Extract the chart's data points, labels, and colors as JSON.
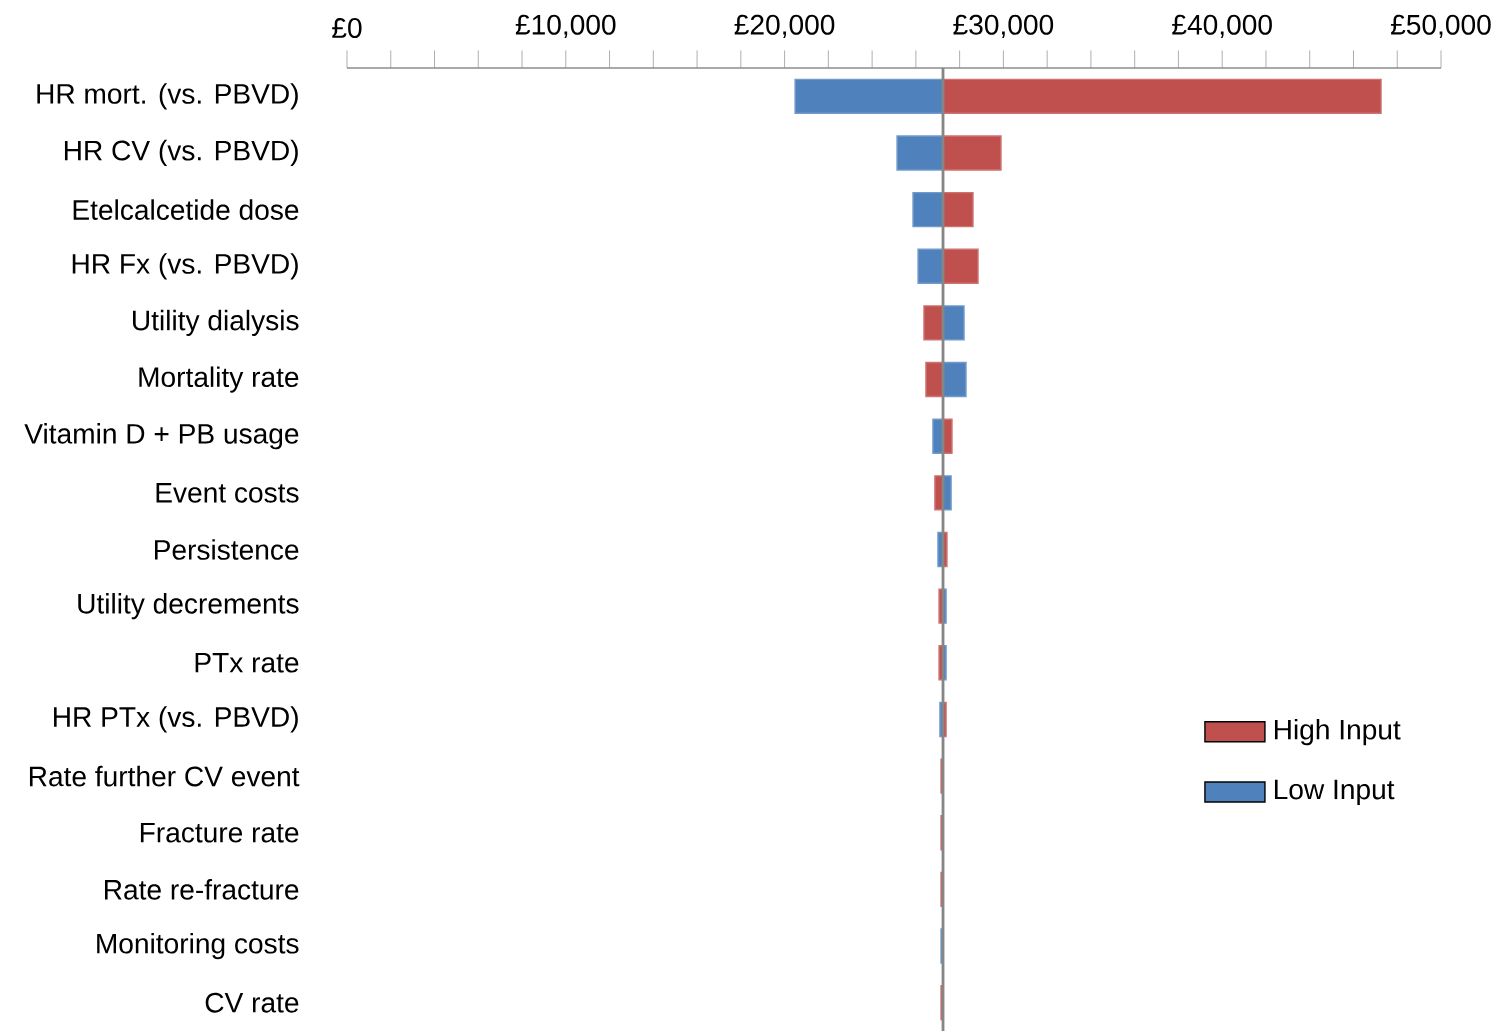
{
  "chart_data": {
    "type": "bar",
    "orientation": "horizontal",
    "categories": [
      "HR mort. (vs. PBVD)",
      "HR CV (vs. PBVD)",
      "Etelcalcetide dose",
      "HR Fx (vs. PBVD)",
      "Utility dialysis",
      "Mortality rate",
      "Vitamin D + PB usage",
      "Event costs",
      "Persistence",
      "Utility decrements",
      "PTx rate",
      "HR PTx (vs. PBVD)",
      "Rate further CV event",
      "Fracture rate",
      "Rate re-fracture",
      "Monitoring costs",
      "CV rate"
    ],
    "series": [
      {
        "name": "High Input",
        "color": "#c0504d",
        "base": [
          27240,
          27240,
          27240,
          27240,
          27240,
          27240,
          27240,
          27240,
          27240,
          27240,
          27240,
          27240,
          27240,
          27240,
          27240,
          null,
          27240
        ],
        "values": [
          20020,
          2650,
          1370,
          1600,
          -870,
          -780,
          410,
          -370,
          180,
          -180,
          -180,
          140,
          -90,
          -90,
          -90,
          null,
          -90
        ]
      },
      {
        "name": "Low Input",
        "color": "#4f81bd",
        "base": [
          27240,
          27240,
          27240,
          27240,
          27240,
          27240,
          27240,
          27240,
          27240,
          27240,
          27240,
          27240,
          null,
          null,
          null,
          27240,
          null
        ],
        "values": [
          -6760,
          -2100,
          -1370,
          -1140,
          960,
          1050,
          -460,
          370,
          -230,
          140,
          140,
          -140,
          null,
          null,
          null,
          -90,
          null
        ]
      }
    ],
    "xlim": [
      0,
      50000
    ],
    "xticks": [
      {
        "value": 0,
        "label": "£0"
      },
      {
        "value": 10000,
        "label": "£10,000"
      },
      {
        "value": 20000,
        "label": "£20,000"
      },
      {
        "value": 30000,
        "label": "£30,000"
      },
      {
        "value": 40000,
        "label": "£40,000"
      },
      {
        "value": 50000,
        "label": "£50,000"
      }
    ],
    "ref_lines": [
      {
        "axis": "x",
        "value": 27240,
        "color": "#868686"
      }
    ],
    "legend": "bottom right"
  }
}
